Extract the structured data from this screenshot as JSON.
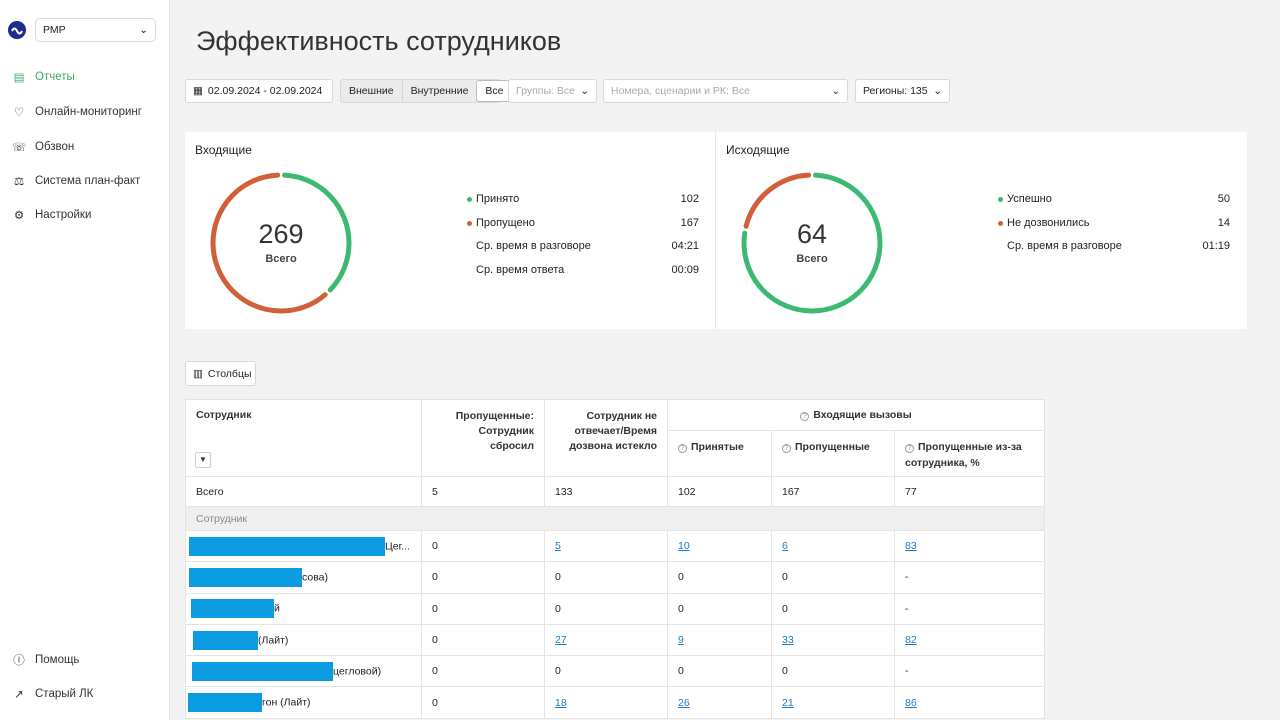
{
  "sidebar": {
    "account": "РМР",
    "nav": [
      "Отчеты",
      "Онлайн-мониторинг",
      "Обзвон",
      "Система план-факт",
      "Настройки"
    ],
    "footer": [
      "Помощь",
      "Старый ЛК"
    ]
  },
  "header": {
    "title": "Эффективность сотрудников"
  },
  "filters": {
    "date": "02.09.2024 - 02.09.2024",
    "toggles": [
      "Внешние",
      "Внутренние",
      "Все"
    ],
    "groups": "Группы: Все",
    "numbers": "Номера, сценарии и РК: Все",
    "regions": "Регионы: 135"
  },
  "cards": [
    {
      "title": "Входящие",
      "total": 269,
      "total_label": "Всего",
      "stats": [
        {
          "label": "Принято",
          "value": 102,
          "color": "#3dba72"
        },
        {
          "label": "Пропущено",
          "value": 167,
          "color": "#d1603a"
        },
        {
          "label": "Ср. время в разговоре",
          "value": "04:21"
        },
        {
          "label": "Ср. время ответа",
          "value": "00:09"
        }
      ]
    },
    {
      "title": "Исходящие",
      "total": 64,
      "total_label": "Всего",
      "stats": [
        {
          "label": "Успешно",
          "value": 50,
          "color": "#3dba72"
        },
        {
          "label": "Не дозвонились",
          "value": 14,
          "color": "#d1603a"
        },
        {
          "label": "Ср. время в разговоре",
          "value": "01:19"
        }
      ]
    }
  ],
  "columns_button": "Столбцы",
  "table": {
    "headers": {
      "employee": "Сотрудник",
      "dropped": "Пропущенные: Сотрудник сбросил",
      "no_answer": "Сотрудник не отвечает/Время дозвона истекло",
      "incoming": "Входящие вызовы",
      "sub": [
        "Принятые",
        "Пропущенные",
        "Пропущенные из-за сотрудника, %"
      ]
    },
    "total_row": [
      "Всего",
      5,
      133,
      102,
      167,
      77
    ],
    "group_label": "Сотрудник",
    "rows": [
      [
        "Цег...",
        0,
        5,
        10,
        6,
        83
      ],
      [
        "сова)",
        0,
        0,
        0,
        0,
        "-"
      ],
      [
        "й",
        0,
        0,
        0,
        0,
        "-"
      ],
      [
        "(Лайт)",
        0,
        27,
        9,
        33,
        82
      ],
      [
        "цегловой)",
        0,
        0,
        0,
        0,
        "-"
      ],
      [
        "гон (Лайт)",
        0,
        18,
        26,
        21,
        86
      ]
    ]
  }
}
